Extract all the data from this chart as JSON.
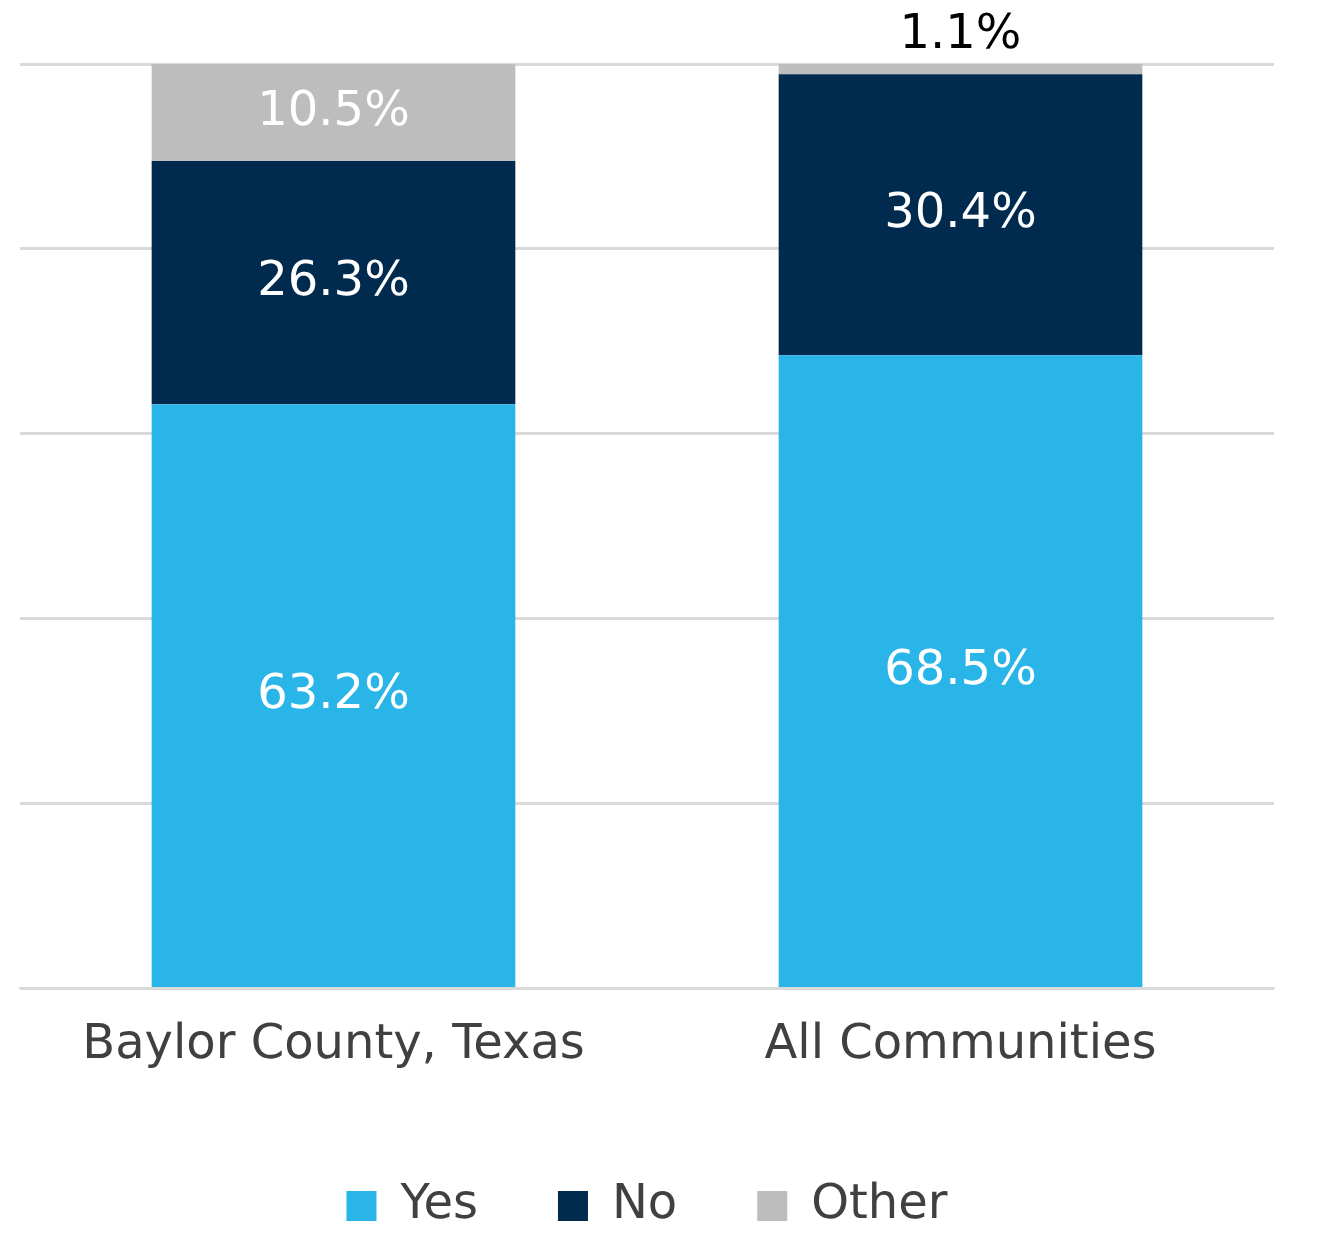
{
  "chart_data": {
    "type": "bar",
    "stacked": true,
    "categories": [
      "Baylor County, Texas",
      "All Communities"
    ],
    "series": [
      {
        "name": "Yes",
        "color": "#29b5e8",
        "values": [
          63.2,
          68.5
        ],
        "value_labels": [
          "63.2%",
          "68.5%"
        ]
      },
      {
        "name": "No",
        "color": "#002a4e",
        "values": [
          26.3,
          30.4
        ],
        "value_labels": [
          "26.3%",
          "30.4%"
        ]
      },
      {
        "name": "Other",
        "color": "#bdbdbd",
        "values": [
          10.5,
          1.1
        ],
        "value_labels": [
          "10.5%",
          "1.1%"
        ]
      }
    ],
    "grid": "y",
    "tick_labels": "x",
    "legend": "bottom"
  }
}
